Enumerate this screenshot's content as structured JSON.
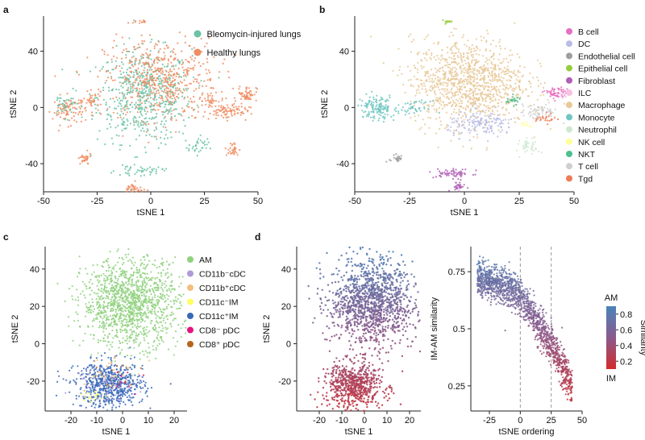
{
  "chart_data": [
    {
      "panel": "a",
      "type": "scatter",
      "xlabel": "tSNE 1",
      "ylabel": "tSNE 2",
      "xlim": [
        -50,
        50
      ],
      "ylim": [
        -60,
        65
      ],
      "xticks": [
        -50,
        -25,
        0,
        25,
        50
      ],
      "yticks": [
        -40,
        0,
        40
      ],
      "legend": [
        {
          "label": "Bleomycin-injured lungs",
          "color": "#6bc2a4"
        },
        {
          "label": "Healthy lungs",
          "color": "#f08d62"
        }
      ],
      "clusters": [
        {
          "series": 0,
          "cx": -3,
          "cy": 8,
          "rx": 20,
          "ry": 30,
          "n": 600
        },
        {
          "series": 1,
          "cx": 5,
          "cy": 20,
          "rx": 24,
          "ry": 26,
          "n": 520
        },
        {
          "series": 1,
          "cx": -38,
          "cy": -2,
          "rx": 7,
          "ry": 9,
          "n": 90
        },
        {
          "series": 0,
          "cx": -40,
          "cy": 2,
          "rx": 6,
          "ry": 8,
          "n": 40
        },
        {
          "series": 1,
          "cx": -27,
          "cy": 5,
          "rx": 4,
          "ry": 5,
          "n": 35
        },
        {
          "series": 1,
          "cx": -31,
          "cy": -37,
          "rx": 3,
          "ry": 4,
          "n": 30
        },
        {
          "series": 1,
          "cx": -8,
          "cy": -58,
          "rx": 4,
          "ry": 4,
          "n": 40
        },
        {
          "series": 0,
          "cx": -5,
          "cy": -45,
          "rx": 10,
          "ry": 3,
          "n": 45
        },
        {
          "series": 1,
          "cx": 45,
          "cy": 10,
          "rx": 4,
          "ry": 5,
          "n": 55
        },
        {
          "series": 1,
          "cx": 35,
          "cy": -3,
          "rx": 10,
          "ry": 5,
          "n": 90
        },
        {
          "series": 0,
          "cx": 22,
          "cy": -28,
          "rx": 4,
          "ry": 5,
          "n": 30
        },
        {
          "series": 1,
          "cx": 38,
          "cy": -30,
          "rx": 3,
          "ry": 5,
          "n": 30
        },
        {
          "series": 1,
          "cx": 28,
          "cy": 5,
          "rx": 3,
          "ry": 4,
          "n": 25
        },
        {
          "series": 1,
          "cx": -5,
          "cy": 61,
          "rx": 3,
          "ry": 1,
          "n": 14
        }
      ]
    },
    {
      "panel": "b",
      "type": "scatter",
      "xlabel": "tSNE 1",
      "ylabel": "tSNE 2",
      "xlim": [
        -50,
        50
      ],
      "ylim": [
        -60,
        65
      ],
      "xticks": [
        -50,
        -25,
        0,
        25,
        50
      ],
      "yticks": [
        -40,
        0,
        40
      ],
      "legend": [
        {
          "label": "B cell",
          "color": "#e76fc0"
        },
        {
          "label": "DC",
          "color": "#b9bce6"
        },
        {
          "label": "Endothelial cell",
          "color": "#9e9e9e"
        },
        {
          "label": "Epithelial cell",
          "color": "#96cd3e"
        },
        {
          "label": "Fibroblast",
          "color": "#b05fb5"
        },
        {
          "label": "ILC",
          "color": "#f9c1e4"
        },
        {
          "label": "Macrophage",
          "color": "#e8c898"
        },
        {
          "label": "Monocyte",
          "color": "#6fc6c2"
        },
        {
          "label": "Neutrophil",
          "color": "#cfe7cf"
        },
        {
          "label": "NK cell",
          "color": "#ffff99"
        },
        {
          "label": "NKT",
          "color": "#4dbf8f"
        },
        {
          "label": "T cell",
          "color": "#cfcfcf"
        },
        {
          "label": "Tgd",
          "color": "#ee7c55"
        }
      ],
      "clusters": [
        {
          "series": 6,
          "cx": 2,
          "cy": 18,
          "rx": 24,
          "ry": 28,
          "n": 1100
        },
        {
          "series": 1,
          "cx": 8,
          "cy": -12,
          "rx": 14,
          "ry": 8,
          "n": 160
        },
        {
          "series": 7,
          "cx": -40,
          "cy": 0,
          "rx": 8,
          "ry": 8,
          "n": 140
        },
        {
          "series": 7,
          "cx": -22,
          "cy": 0,
          "rx": 6,
          "ry": 4,
          "n": 40
        },
        {
          "series": 4,
          "cx": -5,
          "cy": -47,
          "rx": 8,
          "ry": 3,
          "n": 60
        },
        {
          "series": 4,
          "cx": -3,
          "cy": -56,
          "rx": 3,
          "ry": 3,
          "n": 30
        },
        {
          "series": 0,
          "cx": 42,
          "cy": 10,
          "rx": 5,
          "ry": 4,
          "n": 60
        },
        {
          "series": 11,
          "cx": 34,
          "cy": -3,
          "rx": 8,
          "ry": 5,
          "n": 70
        },
        {
          "series": 8,
          "cx": 30,
          "cy": -28,
          "rx": 4,
          "ry": 5,
          "n": 40
        },
        {
          "series": 2,
          "cx": -31,
          "cy": -36,
          "rx": 3,
          "ry": 4,
          "n": 25
        },
        {
          "series": 3,
          "cx": -8,
          "cy": 61,
          "rx": 3,
          "ry": 1,
          "n": 14
        },
        {
          "series": 10,
          "cx": 22,
          "cy": 5,
          "rx": 3,
          "ry": 3,
          "n": 25
        },
        {
          "series": 12,
          "cx": 37,
          "cy": -8,
          "rx": 4,
          "ry": 3,
          "n": 25
        },
        {
          "series": 9,
          "cx": 28,
          "cy": -12,
          "rx": 3,
          "ry": 2,
          "n": 12
        },
        {
          "series": 5,
          "cx": 45,
          "cy": 8,
          "rx": 2,
          "ry": 2,
          "n": 10
        }
      ]
    },
    {
      "panel": "c",
      "type": "scatter",
      "xlabel": "tSNE 1",
      "ylabel": "tSNE 2",
      "xlim": [
        -30,
        25
      ],
      "ylim": [
        -36,
        52
      ],
      "xticks": [
        -20,
        -10,
        0,
        10,
        20
      ],
      "yticks": [
        -20,
        0,
        20,
        40
      ],
      "legend": [
        {
          "label": "AM",
          "color": "#8fd17e"
        },
        {
          "label": "CD11b⁻cDC",
          "color": "#b29ad8"
        },
        {
          "label": "CD11b⁺cDC",
          "color": "#f2bf7d"
        },
        {
          "label": "CD11c⁻IM",
          "color": "#ffff66"
        },
        {
          "label": "CD11c⁺IM",
          "color": "#3a68b8"
        },
        {
          "label": "CD8⁻ pDC",
          "color": "#e3147f"
        },
        {
          "label": "CD8⁺ pDC",
          "color": "#b5651d"
        }
      ],
      "clusters": [
        {
          "series": 0,
          "cx": 3,
          "cy": 22,
          "rx": 17,
          "ry": 21,
          "n": 1300
        },
        {
          "series": 4,
          "cx": -5,
          "cy": -22,
          "rx": 12,
          "ry": 11,
          "n": 650
        },
        {
          "series": 1,
          "cx": -8,
          "cy": -20,
          "rx": 10,
          "ry": 9,
          "n": 40
        },
        {
          "series": 2,
          "cx": -6,
          "cy": -15,
          "rx": 9,
          "ry": 9,
          "n": 40
        },
        {
          "series": 3,
          "cx": -12,
          "cy": -28,
          "rx": 4,
          "ry": 3,
          "n": 20
        },
        {
          "series": 5,
          "cx": -3,
          "cy": -20,
          "rx": 10,
          "ry": 10,
          "n": 10
        },
        {
          "series": 6,
          "cx": -2,
          "cy": -18,
          "rx": 10,
          "ry": 10,
          "n": 8
        }
      ]
    },
    {
      "panel": "d",
      "type": "scatter",
      "xlabel": "tSNE 1",
      "ylabel": "tSNE 2",
      "xlim": [
        -30,
        25
      ],
      "ylim": [
        -36,
        52
      ],
      "xticks": [
        -20,
        -10,
        0,
        10,
        20
      ],
      "yticks": [
        -20,
        0,
        20,
        40
      ],
      "color_by": "similarity",
      "clusters": [
        {
          "cx": 3,
          "cy": 22,
          "rx": 17,
          "ry": 21,
          "n": 1300
        },
        {
          "cx": -5,
          "cy": -22,
          "rx": 12,
          "ry": 11,
          "n": 650
        }
      ]
    },
    {
      "panel": "d-right",
      "type": "scatter",
      "xlabel": "tSNE ordering",
      "ylabel": "IM-AM similarity",
      "xlim": [
        -40,
        50
      ],
      "ylim": [
        0.14,
        0.86
      ],
      "xticks": [
        -25,
        0,
        25,
        50
      ],
      "yticks": [
        0.25,
        0.5,
        0.75
      ],
      "vlines": [
        0,
        25
      ],
      "trend": [
        [
          -35,
          0.72
        ],
        [
          -20,
          0.7
        ],
        [
          -5,
          0.67
        ],
        [
          5,
          0.61
        ],
        [
          15,
          0.52
        ],
        [
          25,
          0.43
        ],
        [
          35,
          0.32
        ],
        [
          42,
          0.24
        ]
      ],
      "n": 1500,
      "noise": 0.04
    },
    {
      "panel": "colorbar",
      "type": "colorbar",
      "title": "Similarity",
      "top_label": "AM",
      "bottom_label": "IM",
      "range": [
        0.1,
        0.9
      ],
      "ticks": [
        0.2,
        0.4,
        0.6,
        0.8
      ],
      "colors": [
        "#d42b2b",
        "#4a84b9"
      ]
    }
  ],
  "panels": [
    "a",
    "b",
    "c",
    "d"
  ]
}
